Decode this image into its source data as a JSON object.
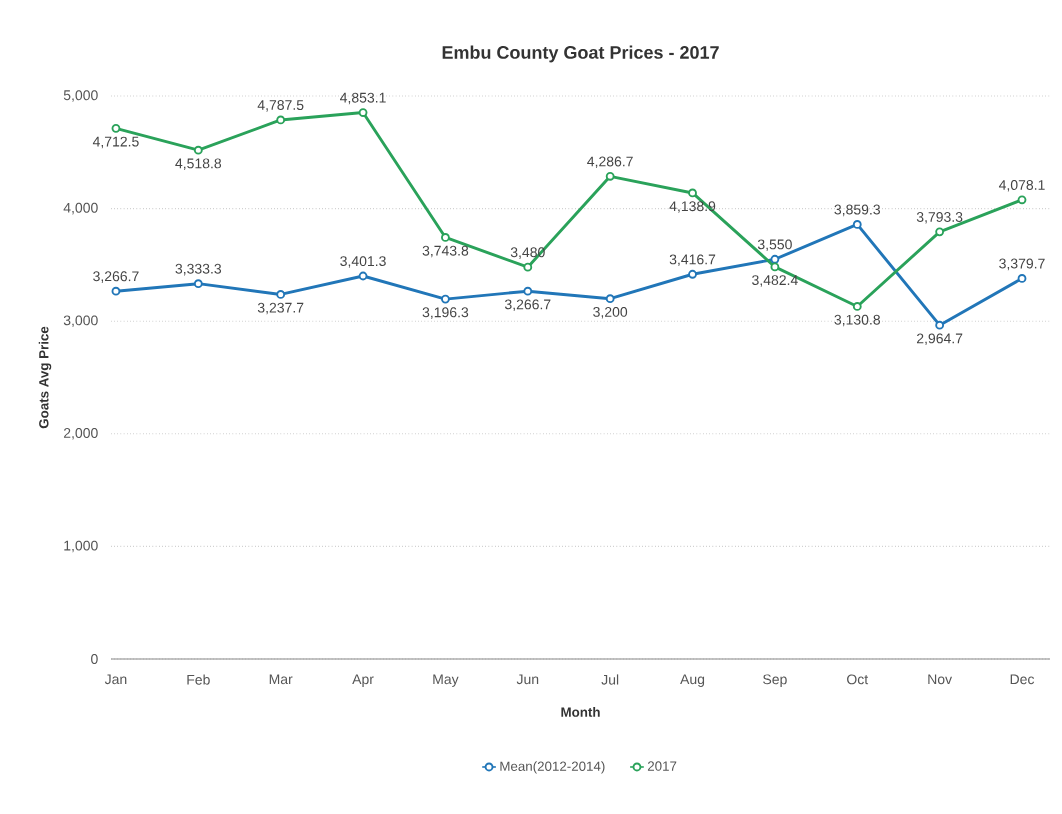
{
  "chart_data": {
    "type": "line",
    "title": "Embu County Goat Prices - 2017",
    "xlabel": "Month",
    "ylabel": "Goats Avg Price",
    "categories": [
      "Jan",
      "Feb",
      "Mar",
      "Apr",
      "May",
      "Jun",
      "Jul",
      "Aug",
      "Sep",
      "Oct",
      "Nov",
      "Dec"
    ],
    "series": [
      {
        "name": "Mean(2012-2014)",
        "color": "#2176b8",
        "values": [
          3266.7,
          3333.3,
          3237.7,
          3401.3,
          3196.3,
          3266.7,
          3200,
          3416.7,
          3550,
          3859.3,
          2964.7,
          3379.7
        ],
        "value_labels": [
          "3,266.7",
          "3,333.3",
          "3,237.7",
          "3,401.3",
          "3,196.3",
          "3,266.7",
          "3,200",
          "3,416.7",
          "3,550",
          "3,859.3",
          "2,964.7",
          "3,379.7"
        ]
      },
      {
        "name": "2017",
        "color": "#2aa25a",
        "values": [
          4712.5,
          4518.8,
          4787.5,
          4853.1,
          3743.8,
          3480,
          4286.7,
          4138.9,
          3482.4,
          3130.8,
          3793.3,
          4078.1
        ],
        "value_labels": [
          "4,712.5",
          "4,518.8",
          "4,787.5",
          "4,853.1",
          "3,743.8",
          "3,480",
          "4,286.7",
          "4,138.9",
          "3,482.4",
          "3,130.8",
          "3,793.3",
          "4,078.1"
        ]
      }
    ],
    "ylim": [
      0,
      5000
    ],
    "yticks": [
      0,
      {
        "value": 1000,
        "label": "1,000"
      },
      {
        "value": 2000,
        "label": "2,000"
      },
      {
        "value": 3000,
        "label": "3,000"
      },
      {
        "value": 4000,
        "label": "4,000"
      },
      {
        "value": 5000,
        "label": "5,000"
      }
    ],
    "grid": "y",
    "legend": "bottom",
    "marker": "circle",
    "line_style": "solid"
  }
}
